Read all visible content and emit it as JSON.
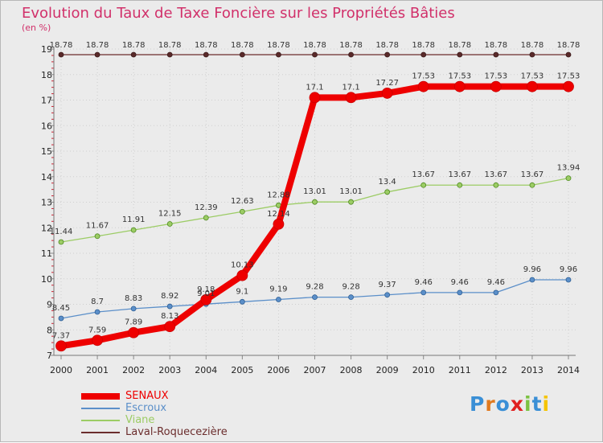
{
  "chart_data": {
    "type": "line",
    "title": "Evolution du Taux de Taxe Foncière sur les Propriétés Bâties",
    "ylabel": "(en %)",
    "xlabel": "",
    "categories": [
      "2000",
      "2001",
      "2002",
      "2003",
      "2004",
      "2005",
      "2006",
      "2007",
      "2008",
      "2009",
      "2010",
      "2011",
      "2012",
      "2013",
      "2014"
    ],
    "ylim": [
      7,
      19
    ],
    "yticks": [
      "7",
      "8",
      "9",
      "10",
      "11",
      "12",
      "13",
      "14",
      "15",
      "16",
      "17",
      "18",
      "19"
    ],
    "series": [
      {
        "name": "Laval-Roquecezière",
        "color": "#6b2d2d",
        "values": [
          18.78,
          18.78,
          18.78,
          18.78,
          18.78,
          18.78,
          18.78,
          18.78,
          18.78,
          18.78,
          18.78,
          18.78,
          18.78,
          18.78,
          18.78
        ],
        "labels": [
          "18.78",
          "18.78",
          "18.78",
          "18.78",
          "18.78",
          "18.78",
          "18.78",
          "18.78",
          "18.78",
          "18.78",
          "18.78",
          "18.78",
          "18.78",
          "18.78",
          "18.78"
        ]
      },
      {
        "name": "Viane",
        "color": "#9ccc65",
        "values": [
          11.44,
          11.67,
          11.91,
          12.15,
          12.39,
          12.63,
          12.88,
          13.01,
          13.01,
          13.4,
          13.67,
          13.67,
          13.67,
          13.67,
          13.94
        ],
        "labels": [
          "11.44",
          "11.67",
          "11.91",
          "12.15",
          "12.39",
          "12.63",
          "12.88",
          "13.01",
          "13.01",
          "13.4",
          "13.67",
          "13.67",
          "13.67",
          "13.67",
          "13.94"
        ]
      },
      {
        "name": "Escroux",
        "color": "#5b8fc9",
        "values": [
          8.45,
          8.7,
          8.83,
          8.92,
          9.01,
          9.1,
          9.19,
          9.28,
          9.28,
          9.37,
          9.46,
          9.46,
          9.46,
          9.96,
          9.96
        ],
        "labels": [
          "8.45",
          "8.7",
          "8.83",
          "8.92",
          "9.01",
          "9.1",
          "9.19",
          "9.28",
          "9.28",
          "9.37",
          "9.46",
          "9.46",
          "9.46",
          "9.96",
          "9.96"
        ]
      },
      {
        "name": "SENAUX",
        "color": "#ee0000",
        "values": [
          7.37,
          7.59,
          7.89,
          8.13,
          9.18,
          10.13,
          12.14,
          17.1,
          17.1,
          17.27,
          17.53,
          17.53,
          17.53,
          17.53,
          17.53
        ],
        "labels": [
          "7.37",
          "7.59",
          "7.89",
          "8.13",
          "9.18",
          "10.13",
          "12.14",
          "17.1",
          "17.1",
          "17.27",
          "17.53",
          "17.53",
          "17.53",
          "17.53",
          "17.53"
        ]
      }
    ],
    "legend": [
      "SENAUX",
      "Escroux",
      "Viane",
      "Laval-Roquecezière"
    ],
    "legend_position": "bottom-left",
    "grid": true
  },
  "brand": {
    "name": "Proxiti",
    "letters": [
      "P",
      "r",
      "o",
      "x",
      "i",
      "t",
      "i"
    ],
    "colors": [
      "#3a8fd6",
      "#e07a1f",
      "#3a8fd6",
      "#e02020",
      "#7cc242",
      "#3a8fd6",
      "#f5c400"
    ]
  }
}
